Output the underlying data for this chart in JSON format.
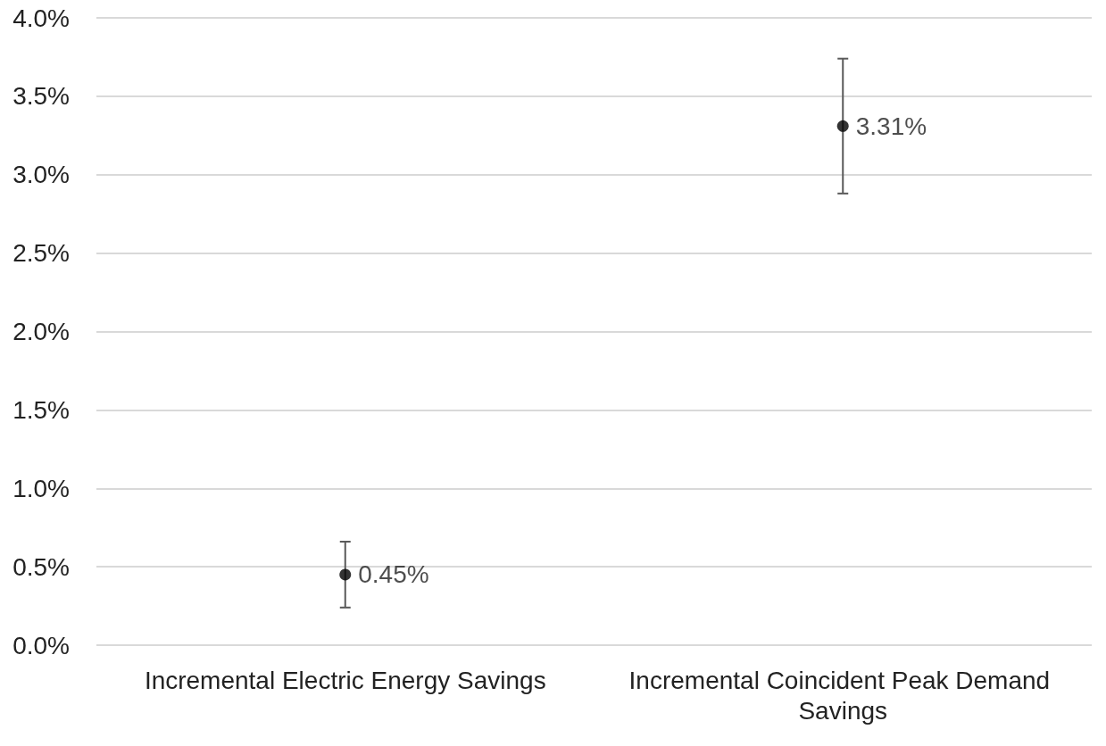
{
  "chart_data": {
    "type": "scatter",
    "categories": [
      "Incremental Electric Energy Savings",
      "Incremental Coincident Peak Demand Savings"
    ],
    "values": [
      0.45,
      3.31
    ],
    "errors": [
      [
        0.24,
        0.66
      ],
      [
        2.88,
        3.74
      ]
    ],
    "value_labels": [
      "0.45%",
      "3.31%"
    ],
    "color": "#000000",
    "marker": "circle",
    "ylim": [
      0,
      4
    ],
    "yticks": [
      {
        "value": 0,
        "label": "0.0%"
      },
      {
        "value": 0.5,
        "label": "0.5%"
      },
      {
        "value": 1,
        "label": "1.0%"
      },
      {
        "value": 1.5,
        "label": "1.5%"
      },
      {
        "value": 2,
        "label": "2.0%"
      },
      {
        "value": 2.5,
        "label": "2.5%"
      },
      {
        "value": 3,
        "label": "3.0%"
      },
      {
        "value": 3.5,
        "label": "3.5%"
      },
      {
        "value": 4,
        "label": "4.0%"
      }
    ],
    "grid": "y"
  }
}
